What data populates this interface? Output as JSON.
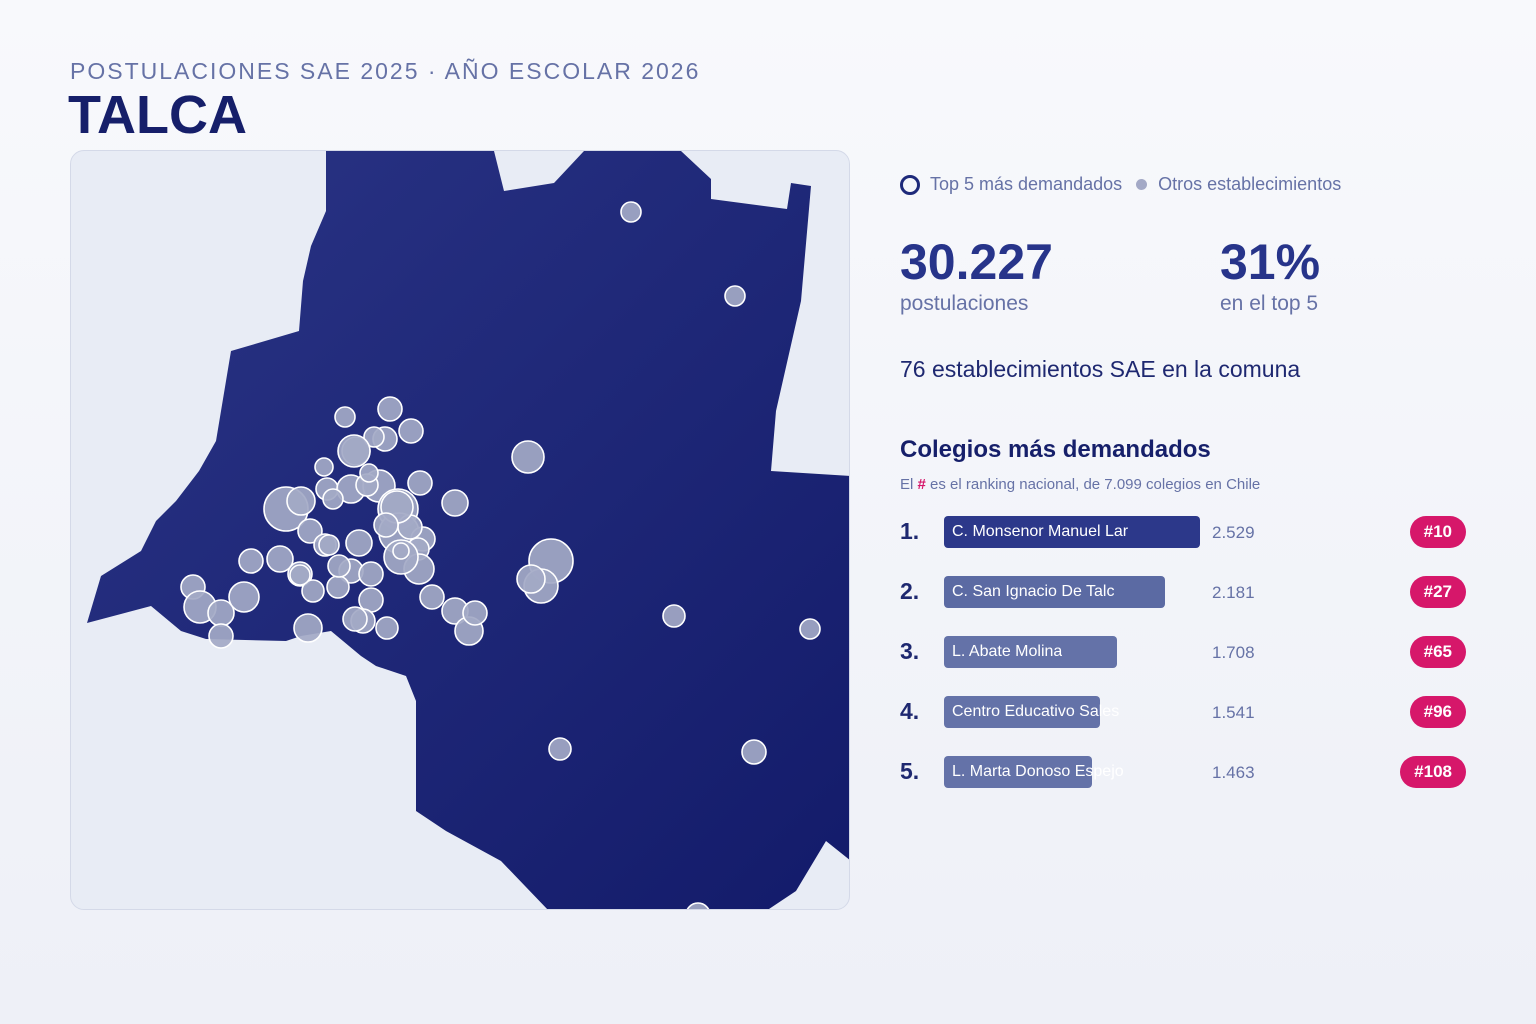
{
  "header": {
    "kicker": "POSTULACIONES SAE 2025 · AÑO ESCOLAR 2026",
    "title": "TALCA"
  },
  "colors": {
    "region_fill": "#1e2a7a",
    "accent_pink": "#d6176a",
    "circle_fill": "#a3a9c6",
    "background": "#e8ecf5"
  },
  "legend": {
    "top5_label": "Top 5 más demandados",
    "others_label": "Otros establecimientos"
  },
  "stats": {
    "applications_value": "30.227",
    "applications_label": "postulaciones",
    "top5_share_value": "31%",
    "top5_share_label": "en el top 5",
    "establishments_text": "76 establecimientos SAE en la comuna"
  },
  "ranking": {
    "title": "Colegios más demandados",
    "note_prefix": "El",
    "note_hash": "#",
    "note_suffix": "es el ranking nacional, de 7.099 colegios en Chile",
    "items": [
      {
        "rank": "1.",
        "name": "C. Monsenor Manuel Lar",
        "value": "2.529",
        "count": 2529,
        "badge": "#10",
        "color": "#2c388a"
      },
      {
        "rank": "2.",
        "name": "C. San Ignacio De Talc",
        "value": "2.181",
        "count": 2181,
        "badge": "#27",
        "color": "#5b6aa3"
      },
      {
        "rank": "3.",
        "name": "L. Abate Molina",
        "value": "1.708",
        "count": 1708,
        "badge": "#65",
        "color": "#6472a8"
      },
      {
        "rank": "4.",
        "name": "Centro Educativo Sales",
        "value": "1.541",
        "count": 1541,
        "badge": "#96",
        "color": "#6472a8"
      },
      {
        "rank": "5.",
        "name": "L. Marta Donoso Espejo",
        "value": "1.463",
        "count": 1463,
        "badge": "#108",
        "color": "#6472a8"
      }
    ]
  }
}
